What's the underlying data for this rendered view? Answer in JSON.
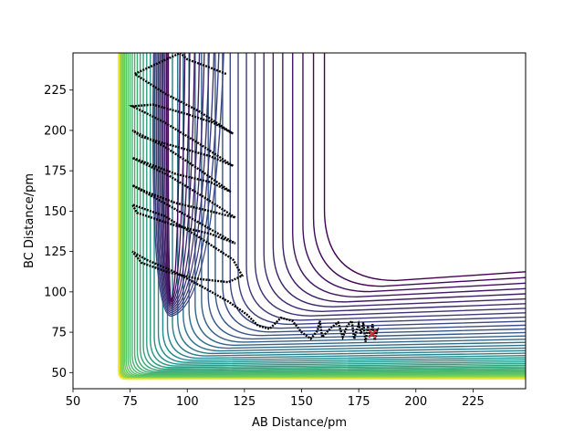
{
  "chart_data": {
    "type": "contour",
    "title": "",
    "xlabel": "AB Distance/pm",
    "ylabel": "BC Distance/pm",
    "xlim": [
      50,
      248
    ],
    "ylim": [
      40,
      248
    ],
    "x_ticks": [
      "50",
      "75",
      "100",
      "125",
      "150",
      "175",
      "200",
      "225"
    ],
    "y_ticks": [
      "50",
      "75",
      "100",
      "125",
      "150",
      "175",
      "200",
      "225"
    ],
    "x_tick_values": [
      50,
      75,
      100,
      125,
      150,
      175,
      200,
      225
    ],
    "y_tick_values": [
      50,
      75,
      100,
      125,
      150,
      175,
      200,
      225
    ],
    "grid": false,
    "colormap": [
      "#440154",
      "#3b528b",
      "#21918c",
      "#5ec962",
      "#fde725"
    ],
    "trajectory": {
      "color": "#000000",
      "points": [
        [
          117,
          235
        ],
        [
          108,
          240
        ],
        [
          100,
          244
        ],
        [
          97,
          248
        ],
        [
          77,
          235
        ],
        [
          90,
          223
        ],
        [
          105,
          212
        ],
        [
          120,
          198
        ],
        [
          111,
          205
        ],
        [
          100,
          210
        ],
        [
          85,
          216
        ],
        [
          76,
          215
        ],
        [
          90,
          205
        ],
        [
          105,
          192
        ],
        [
          120,
          178
        ],
        [
          110,
          184
        ],
        [
          95,
          190
        ],
        [
          80,
          196
        ],
        [
          76,
          200
        ],
        [
          90,
          190
        ],
        [
          105,
          176
        ],
        [
          119,
          162
        ],
        [
          110,
          168
        ],
        [
          95,
          173
        ],
        [
          80,
          181
        ],
        [
          76,
          183
        ],
        [
          92,
          172
        ],
        [
          108,
          158
        ],
        [
          121,
          146
        ],
        [
          110,
          150
        ],
        [
          95,
          155
        ],
        [
          82,
          162
        ],
        [
          76,
          166
        ],
        [
          90,
          155
        ],
        [
          105,
          143
        ],
        [
          121,
          130
        ],
        [
          110,
          136
        ],
        [
          95,
          141
        ],
        [
          78,
          149
        ],
        [
          76,
          154
        ],
        [
          90,
          147
        ],
        [
          105,
          134
        ],
        [
          120,
          120
        ],
        [
          124,
          110
        ],
        [
          118,
          106
        ],
        [
          105,
          108
        ],
        [
          92,
          112
        ],
        [
          80,
          118
        ],
        [
          76,
          125
        ],
        [
          82,
          120
        ],
        [
          95,
          112
        ],
        [
          108,
          102
        ],
        [
          118,
          94
        ],
        [
          126,
          86
        ],
        [
          131,
          79
        ],
        [
          136,
          77
        ],
        [
          141,
          84
        ],
        [
          146,
          82
        ],
        [
          150,
          75
        ],
        [
          154,
          71
        ],
        [
          157,
          76
        ],
        [
          158,
          82
        ],
        [
          159,
          72
        ],
        [
          163,
          78
        ],
        [
          166,
          81
        ],
        [
          168,
          72
        ],
        [
          170,
          79
        ],
        [
          172,
          82
        ],
        [
          173,
          71
        ],
        [
          175,
          80
        ],
        [
          176,
          74
        ],
        [
          177,
          81
        ],
        [
          178,
          69
        ],
        [
          179,
          79
        ],
        [
          180,
          72
        ],
        [
          181,
          80
        ],
        [
          182,
          70
        ],
        [
          183,
          76
        ],
        [
          181,
          73
        ]
      ]
    },
    "marker": {
      "x": 181,
      "y": 74,
      "color": "#d62728"
    },
    "pointer_ticks": {
      "x": [
        50,
        75,
        100,
        125,
        150,
        175,
        200,
        225
      ],
      "y": [
        50,
        75,
        100,
        125,
        150,
        175,
        200,
        225
      ]
    }
  }
}
